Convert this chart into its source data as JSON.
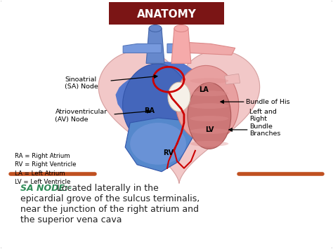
{
  "title": "ANATOMY",
  "title_bg_color": "#7B1515",
  "title_text_color": "#FFFFFF",
  "background_color": "#FFFFFF",
  "border_color": "#CCCCCC",
  "divider_color": "#C05020",
  "sa_node_text": "SA NODE:-",
  "sa_node_color": "#2E8B57",
  "description_line1": " Located laterally in the",
  "description_line2": "epicardial grove of the sulcus terminalis,",
  "description_line3": "near the junction of the right atrium and",
  "description_line4": "the superior vena cava",
  "description_color": "#222222",
  "figsize": [
    4.74,
    3.55
  ],
  "dpi": 100
}
